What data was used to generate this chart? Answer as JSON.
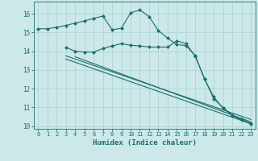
{
  "bg_color": "#cce8e8",
  "grid_color": "#b0d4d4",
  "line_color": "#1a7070",
  "xlabel": "Humidex (Indice chaleur)",
  "xlim": [
    -0.5,
    23.5
  ],
  "ylim": [
    9.85,
    16.65
  ],
  "yticks": [
    10,
    11,
    12,
    13,
    14,
    15,
    16
  ],
  "xticks": [
    0,
    1,
    2,
    3,
    4,
    5,
    6,
    7,
    8,
    9,
    10,
    11,
    12,
    13,
    14,
    15,
    16,
    17,
    18,
    19,
    20,
    21,
    22,
    23
  ],
  "curve1_x": [
    0,
    1,
    2,
    3,
    4,
    5,
    6,
    7,
    8,
    9,
    10,
    11,
    12,
    13,
    14,
    15,
    16,
    17,
    18,
    19,
    20,
    21,
    22,
    23
  ],
  "curve1_y": [
    15.2,
    15.2,
    15.28,
    15.38,
    15.5,
    15.62,
    15.75,
    15.88,
    15.15,
    15.22,
    16.05,
    16.2,
    15.85,
    15.1,
    14.7,
    14.35,
    14.3,
    13.75,
    12.5,
    11.55,
    10.95,
    10.55,
    10.35,
    10.15
  ],
  "curve2_x": [
    3,
    4,
    5,
    6,
    7,
    8,
    9,
    10,
    11,
    12,
    13,
    14,
    15,
    16,
    17,
    18,
    19,
    20,
    21,
    22,
    23
  ],
  "curve2_y": [
    14.2,
    14.0,
    13.95,
    13.95,
    14.15,
    14.28,
    14.4,
    14.32,
    14.28,
    14.22,
    14.22,
    14.22,
    14.55,
    14.4,
    13.72,
    12.52,
    11.45,
    10.98,
    10.58,
    10.32,
    10.12
  ],
  "line1_x": [
    3,
    23
  ],
  "line1_y": [
    13.75,
    10.35
  ],
  "line2_x": [
    3,
    23
  ],
  "line2_y": [
    13.58,
    10.12
  ],
  "line3_x": [
    4,
    23
  ],
  "line3_y": [
    13.7,
    10.22
  ]
}
